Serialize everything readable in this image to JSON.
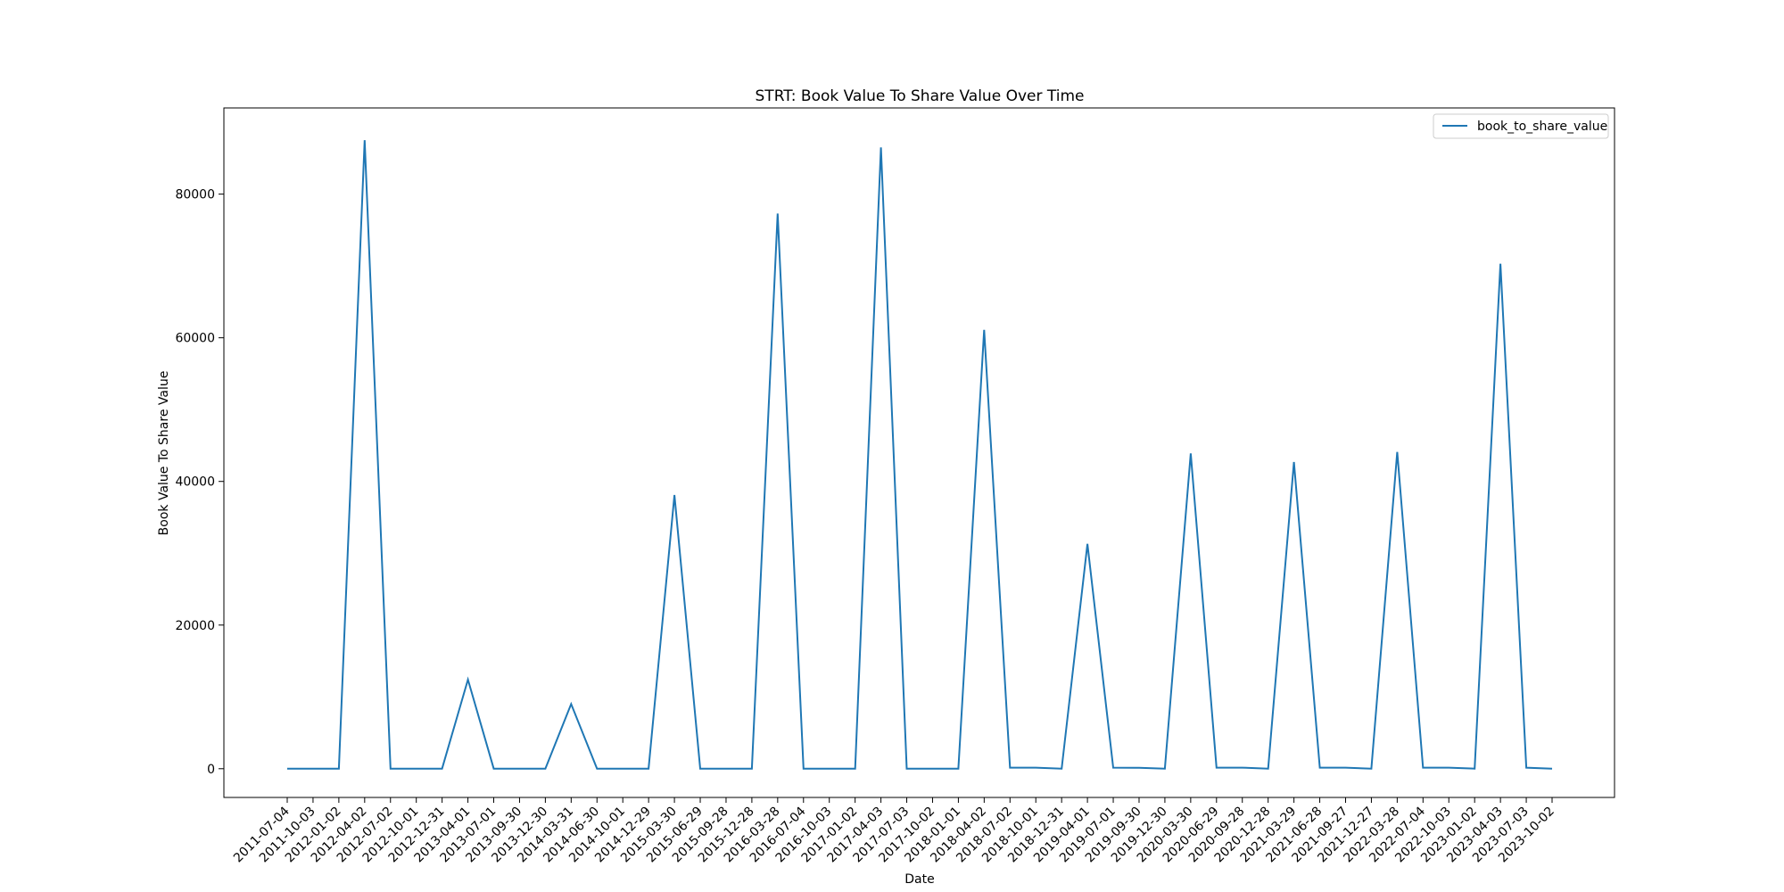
{
  "chart_data": {
    "type": "line",
    "title": "STRT: Book Value To Share Value Over Time",
    "xlabel": "Date",
    "ylabel": "Book Value To Share Value",
    "ylim": [
      -4000,
      92000
    ],
    "yticks": [
      0,
      20000,
      40000,
      60000,
      80000
    ],
    "grid": false,
    "legend_position": "top-right",
    "x": [
      "2011-07-04",
      "2011-10-03",
      "2012-01-02",
      "2012-04-02",
      "2012-07-02",
      "2012-10-01",
      "2012-12-31",
      "2013-04-01",
      "2013-07-01",
      "2013-09-30",
      "2013-12-30",
      "2014-03-31",
      "2014-06-30",
      "2014-10-01",
      "2014-12-29",
      "2015-03-30",
      "2015-06-29",
      "2015-09-28",
      "2015-12-28",
      "2016-03-28",
      "2016-07-04",
      "2016-10-03",
      "2017-01-02",
      "2017-04-03",
      "2017-07-03",
      "2017-10-02",
      "2018-01-01",
      "2018-04-02",
      "2018-07-02",
      "2018-10-01",
      "2018-12-31",
      "2019-04-01",
      "2019-07-01",
      "2019-09-30",
      "2019-12-30",
      "2020-03-30",
      "2020-06-29",
      "2020-09-28",
      "2020-12-28",
      "2021-03-29",
      "2021-06-28",
      "2021-09-27",
      "2021-12-27",
      "2022-03-28",
      "2022-07-04",
      "2022-10-03",
      "2023-01-02",
      "2023-04-03",
      "2023-07-03",
      "2023-10-02"
    ],
    "series": [
      {
        "name": "book_to_share_value",
        "color": "#1f77b4",
        "values": [
          10,
          10,
          10,
          87500,
          10,
          10,
          10,
          12400,
          10,
          10,
          10,
          9000,
          10,
          10,
          10,
          38100,
          10,
          10,
          10,
          77300,
          10,
          10,
          10,
          86500,
          10,
          10,
          10,
          61100,
          150,
          150,
          10,
          31300,
          150,
          120,
          10,
          43900,
          150,
          150,
          10,
          42700,
          150,
          150,
          10,
          44100,
          150,
          150,
          10,
          70300,
          150,
          10
        ]
      }
    ]
  }
}
